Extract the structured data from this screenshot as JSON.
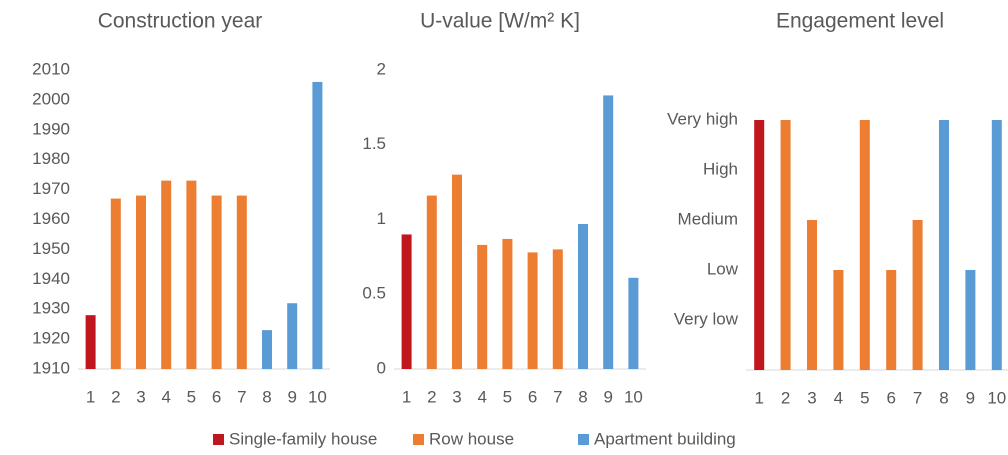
{
  "chart_data": [
    {
      "type": "bar",
      "title": "Construction year",
      "categories": [
        1,
        2,
        3,
        4,
        5,
        6,
        7,
        8,
        9,
        10
      ],
      "values": [
        1928,
        1967,
        1968,
        1973,
        1973,
        1968,
        1968,
        1923,
        1932,
        2006
      ],
      "colors": [
        "#c0161e",
        "#ed7d31",
        "#ed7d31",
        "#ed7d31",
        "#ed7d31",
        "#ed7d31",
        "#ed7d31",
        "#5b9bd5",
        "#5b9bd5",
        "#5b9bd5"
      ],
      "ylim": [
        1910,
        2010
      ],
      "yticks": [
        1910,
        1920,
        1930,
        1940,
        1950,
        1960,
        1970,
        1980,
        1990,
        2000,
        2010
      ],
      "grid": false
    },
    {
      "type": "bar",
      "title": "U-value [W/m² K]",
      "categories": [
        1,
        2,
        3,
        4,
        5,
        6,
        7,
        8,
        9,
        10
      ],
      "values": [
        0.9,
        1.16,
        1.3,
        0.83,
        0.87,
        0.78,
        0.8,
        0.97,
        1.83,
        0.61
      ],
      "colors": [
        "#c0161e",
        "#ed7d31",
        "#ed7d31",
        "#ed7d31",
        "#ed7d31",
        "#ed7d31",
        "#ed7d31",
        "#5b9bd5",
        "#5b9bd5",
        "#5b9bd5"
      ],
      "ylim": [
        0,
        2
      ],
      "yticks": [
        0,
        0.5,
        1,
        1.5,
        2
      ],
      "grid": false
    },
    {
      "type": "bar",
      "title": "Engagement level",
      "categories": [
        1,
        2,
        3,
        4,
        5,
        6,
        7,
        8,
        9,
        10
      ],
      "values": [
        5,
        5,
        3,
        2,
        5,
        2,
        3,
        5,
        2,
        5
      ],
      "colors": [
        "#c0161e",
        "#ed7d31",
        "#ed7d31",
        "#ed7d31",
        "#ed7d31",
        "#ed7d31",
        "#ed7d31",
        "#5b9bd5",
        "#5b9bd5",
        "#5b9bd5"
      ],
      "ylim": [
        0,
        5
      ],
      "yticks": [
        {
          "value": 1,
          "label": "Very low"
        },
        {
          "value": 2,
          "label": "Low"
        },
        {
          "value": 3,
          "label": "Medium"
        },
        {
          "value": 4,
          "label": "High"
        },
        {
          "value": 5,
          "label": "Very high"
        }
      ],
      "grid": false
    }
  ],
  "legend": [
    {
      "name": "Single-family house",
      "color": "#c0161e"
    },
    {
      "name": "Row house",
      "color": "#ed7d31"
    },
    {
      "name": "Apartment building",
      "color": "#5b9bd5"
    }
  ]
}
